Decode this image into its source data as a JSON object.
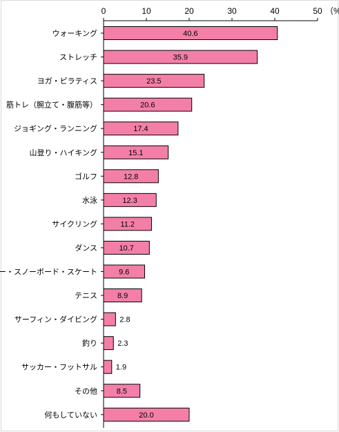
{
  "chart_data": {
    "type": "bar",
    "orientation": "horizontal",
    "categories": [
      "ウォーキング",
      "ストレッチ",
      "ヨガ・ピラティス",
      "筋トレ（腕立て・腹筋等）",
      "ジョギング・ランニング",
      "山登り・ハイキング",
      "ゴルフ",
      "水泳",
      "サイクリング",
      "ダンス",
      "スキー・スノーボード・スケート",
      "テニス",
      "サーフィン・ダイビング",
      "釣り",
      "サッカー・フットサル",
      "その他",
      "何もしていない"
    ],
    "values": [
      40.6,
      35.9,
      23.5,
      20.6,
      17.4,
      15.1,
      12.8,
      12.3,
      11.2,
      10.7,
      9.6,
      8.9,
      2.8,
      2.3,
      1.9,
      8.5,
      20.0
    ],
    "value_labels": [
      "40.6",
      "35.9",
      "23.5",
      "20.6",
      "17.4",
      "15.1",
      "12.8",
      "12.3",
      "11.2",
      "10.7",
      "9.6",
      "8.9",
      "2.8",
      "2.3",
      "1.9",
      "8.5",
      "20.0"
    ],
    "xlim": [
      0,
      50
    ],
    "x_ticks": [
      "0",
      "10",
      "20",
      "30",
      "40",
      "50"
    ],
    "unit_label": "（%）",
    "axis_position": "top",
    "grid": false,
    "bar_color": "#f37fa8",
    "bar_edge_color": "#000000"
  }
}
